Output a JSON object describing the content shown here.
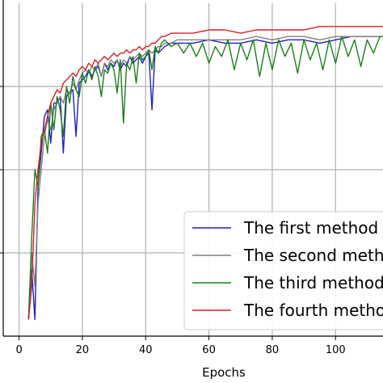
{
  "chart_data": {
    "type": "line",
    "title": "",
    "xlabel": "Epochs",
    "ylabel": "",
    "xlim": [
      -5,
      115
    ],
    "ylim": [
      0,
      1
    ],
    "xticks": [
      0,
      20,
      40,
      60,
      80,
      100
    ],
    "grid": true,
    "legend_position": "bottom-right",
    "series": [
      {
        "name": "The first method",
        "color": "#1f1fbf",
        "x": [
          3,
          4,
          5,
          6,
          7,
          8,
          9,
          10,
          11,
          12,
          13,
          14,
          15,
          16,
          17,
          18,
          19,
          20,
          21,
          22,
          23,
          24,
          25,
          26,
          27,
          28,
          29,
          30,
          31,
          32,
          33,
          34,
          35,
          36,
          37,
          38,
          39,
          40,
          41,
          42,
          43,
          44,
          45,
          46,
          48,
          50,
          55,
          60,
          65,
          70,
          75,
          80,
          85,
          90,
          95,
          100,
          105,
          110,
          115
        ],
        "y": [
          0.05,
          0.2,
          0.05,
          0.45,
          0.55,
          0.66,
          0.68,
          0.58,
          0.7,
          0.7,
          0.72,
          0.55,
          0.72,
          0.73,
          0.74,
          0.6,
          0.76,
          0.77,
          0.78,
          0.8,
          0.78,
          0.8,
          0.81,
          0.78,
          0.82,
          0.8,
          0.82,
          0.81,
          0.83,
          0.8,
          0.82,
          0.81,
          0.84,
          0.82,
          0.83,
          0.84,
          0.82,
          0.84,
          0.85,
          0.68,
          0.86,
          0.85,
          0.86,
          0.87,
          0.88,
          0.88,
          0.88,
          0.89,
          0.88,
          0.88,
          0.89,
          0.88,
          0.89,
          0.89,
          0.88,
          0.89,
          0.9,
          0.9,
          0.9
        ]
      },
      {
        "name": "The second method",
        "color": "#808080",
        "x": [
          3,
          4,
          5,
          6,
          7,
          8,
          9,
          10,
          11,
          12,
          13,
          14,
          15,
          16,
          17,
          18,
          19,
          20,
          21,
          22,
          23,
          24,
          25,
          26,
          27,
          28,
          29,
          30,
          31,
          32,
          33,
          34,
          35,
          36,
          37,
          38,
          39,
          40,
          41,
          42,
          43,
          44,
          45,
          46,
          48,
          50,
          55,
          60,
          65,
          70,
          75,
          80,
          85,
          90,
          95,
          100,
          105,
          110,
          115
        ],
        "y": [
          0.05,
          0.25,
          0.15,
          0.4,
          0.5,
          0.6,
          0.65,
          0.62,
          0.68,
          0.7,
          0.72,
          0.7,
          0.74,
          0.73,
          0.76,
          0.74,
          0.77,
          0.79,
          0.8,
          0.79,
          0.81,
          0.8,
          0.82,
          0.78,
          0.82,
          0.81,
          0.83,
          0.82,
          0.83,
          0.81,
          0.83,
          0.82,
          0.84,
          0.83,
          0.84,
          0.85,
          0.84,
          0.85,
          0.86,
          0.85,
          0.86,
          0.87,
          0.87,
          0.88,
          0.88,
          0.89,
          0.89,
          0.89,
          0.89,
          0.89,
          0.9,
          0.89,
          0.9,
          0.9,
          0.89,
          0.9,
          0.9,
          0.9,
          0.9
        ]
      },
      {
        "name": "The third method",
        "color": "#1a7f1a",
        "x": [
          3,
          4,
          5,
          6,
          7,
          8,
          9,
          10,
          11,
          12,
          13,
          14,
          15,
          16,
          17,
          18,
          19,
          20,
          21,
          22,
          23,
          24,
          25,
          26,
          27,
          28,
          29,
          30,
          31,
          32,
          33,
          34,
          35,
          36,
          37,
          38,
          39,
          40,
          41,
          42,
          43,
          44,
          45,
          46,
          48,
          50,
          52,
          54,
          56,
          58,
          60,
          62,
          64,
          66,
          68,
          70,
          72,
          74,
          76,
          78,
          80,
          82,
          84,
          86,
          88,
          90,
          92,
          94,
          96,
          98,
          100,
          102,
          104,
          106,
          108,
          110,
          112,
          114,
          115
        ],
        "y": [
          0.05,
          0.3,
          0.5,
          0.45,
          0.6,
          0.62,
          0.55,
          0.7,
          0.62,
          0.72,
          0.68,
          0.6,
          0.75,
          0.7,
          0.78,
          0.74,
          0.72,
          0.79,
          0.76,
          0.8,
          0.77,
          0.81,
          0.78,
          0.72,
          0.8,
          0.79,
          0.82,
          0.8,
          0.73,
          0.83,
          0.64,
          0.82,
          0.8,
          0.84,
          0.76,
          0.85,
          0.83,
          0.84,
          0.86,
          0.8,
          0.87,
          0.85,
          0.88,
          0.89,
          0.87,
          0.88,
          0.85,
          0.88,
          0.84,
          0.88,
          0.82,
          0.87,
          0.84,
          0.89,
          0.8,
          0.88,
          0.83,
          0.89,
          0.78,
          0.88,
          0.8,
          0.89,
          0.84,
          0.88,
          0.79,
          0.89,
          0.83,
          0.88,
          0.8,
          0.89,
          0.82,
          0.9,
          0.84,
          0.89,
          0.81,
          0.89,
          0.85,
          0.9,
          0.9
        ]
      },
      {
        "name": "The fourth method",
        "color": "#d62020",
        "x": [
          3,
          4,
          5,
          6,
          7,
          8,
          9,
          10,
          11,
          12,
          13,
          14,
          15,
          16,
          17,
          18,
          19,
          20,
          21,
          22,
          23,
          24,
          25,
          26,
          27,
          28,
          29,
          30,
          31,
          32,
          33,
          34,
          35,
          36,
          37,
          38,
          39,
          40,
          41,
          42,
          43,
          44,
          45,
          46,
          48,
          50,
          55,
          60,
          65,
          70,
          75,
          80,
          85,
          90,
          95,
          100,
          105,
          110,
          115
        ],
        "y": [
          0.05,
          0.15,
          0.4,
          0.5,
          0.58,
          0.62,
          0.66,
          0.7,
          0.72,
          0.74,
          0.73,
          0.76,
          0.77,
          0.78,
          0.79,
          0.78,
          0.8,
          0.81,
          0.8,
          0.82,
          0.81,
          0.83,
          0.82,
          0.83,
          0.84,
          0.83,
          0.84,
          0.85,
          0.84,
          0.85,
          0.85,
          0.86,
          0.85,
          0.86,
          0.86,
          0.87,
          0.86,
          0.87,
          0.87,
          0.88,
          0.88,
          0.89,
          0.9,
          0.9,
          0.91,
          0.91,
          0.91,
          0.92,
          0.92,
          0.91,
          0.92,
          0.92,
          0.92,
          0.92,
          0.93,
          0.93,
          0.93,
          0.93,
          0.93
        ]
      }
    ]
  }
}
